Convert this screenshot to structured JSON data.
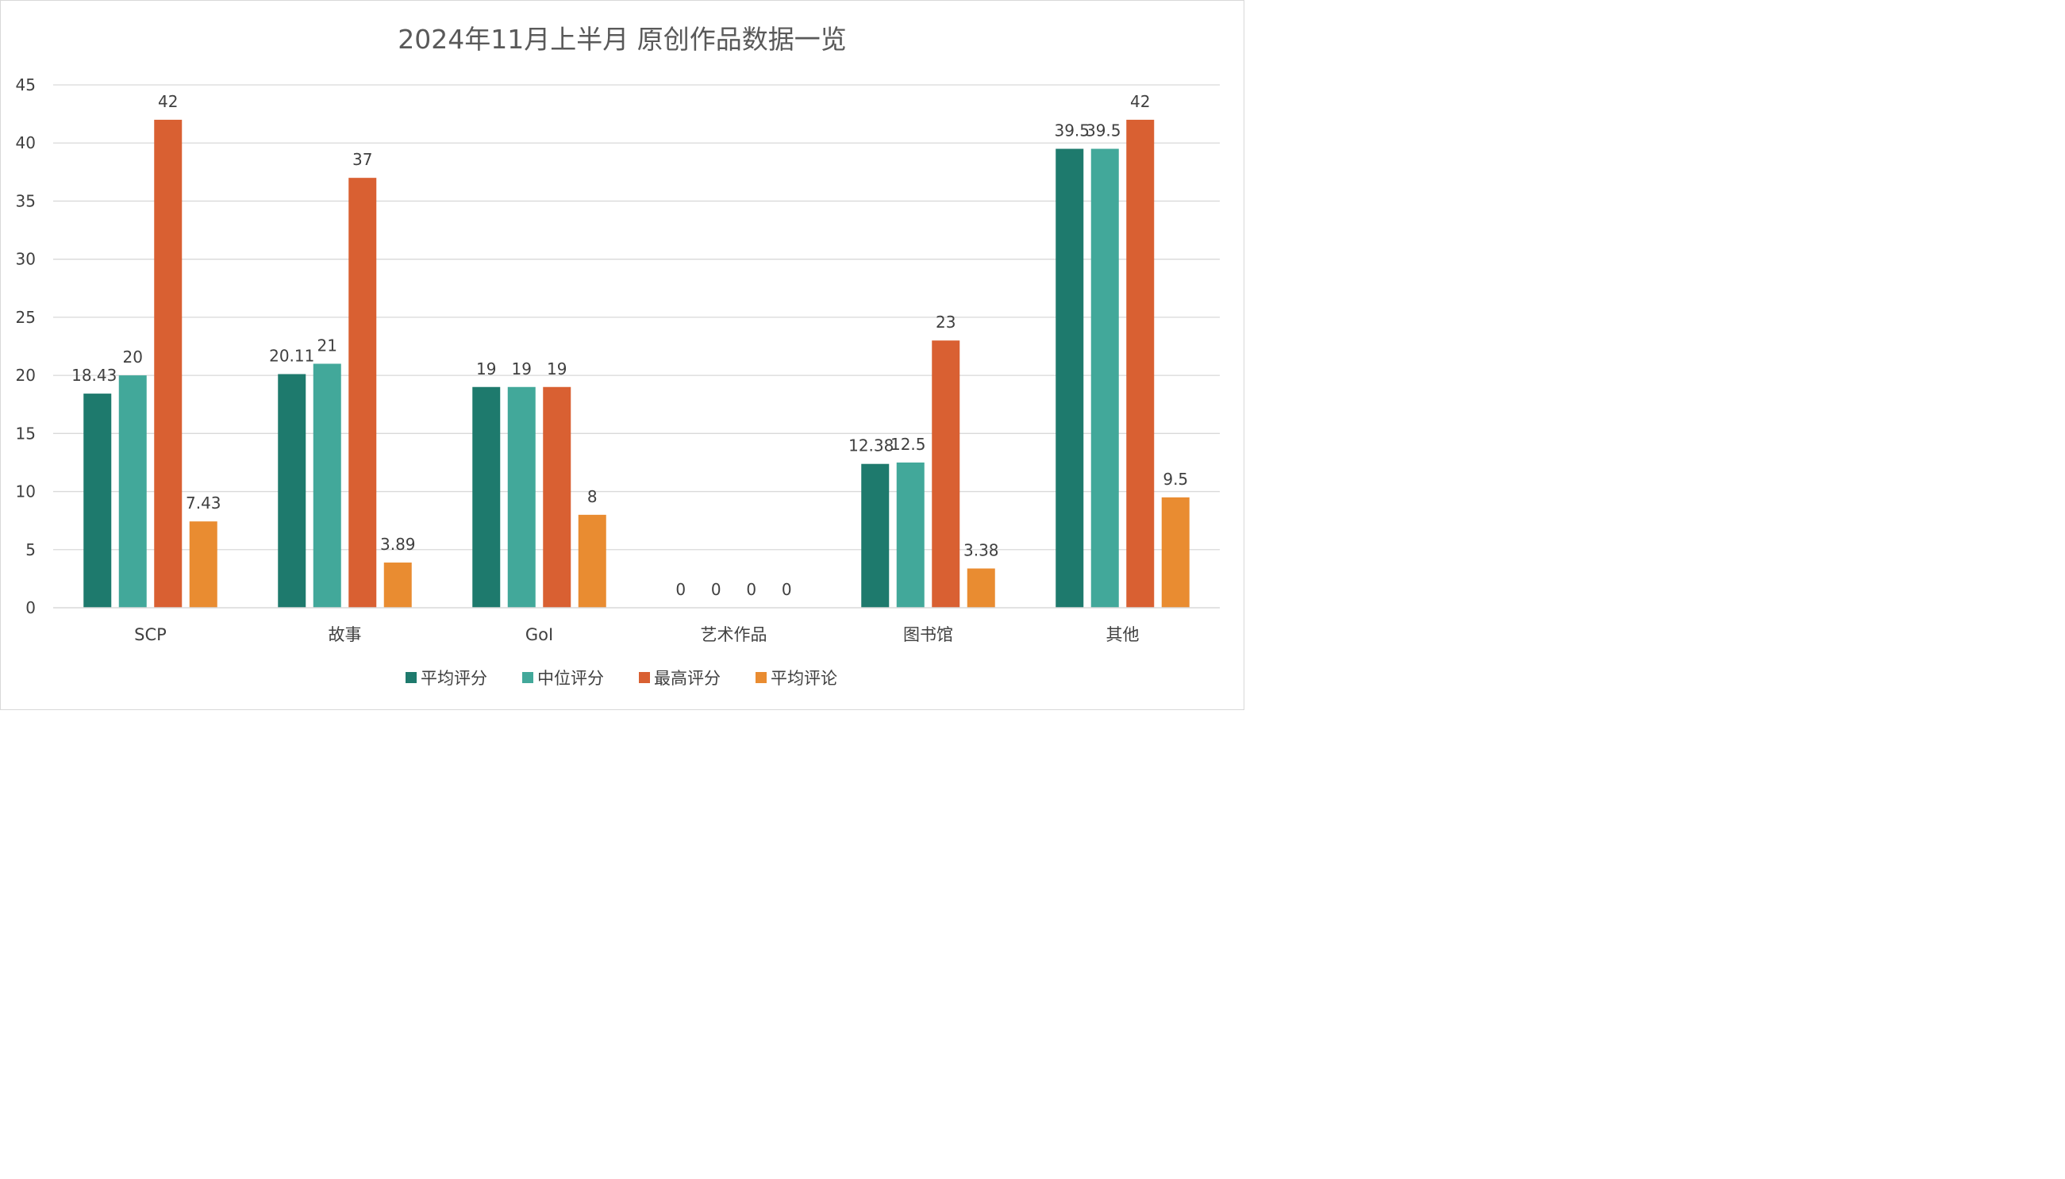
{
  "chart_data": {
    "type": "bar",
    "title": "2024年11月上半月 原创作品数据一览",
    "xlabel": "",
    "ylabel": "",
    "ylim": [
      0,
      45
    ],
    "y_ticks": [
      0,
      5,
      10,
      15,
      20,
      25,
      30,
      35,
      40,
      45
    ],
    "grid": true,
    "legend_position": "bottom",
    "categories": [
      "SCP",
      "故事",
      "GoI",
      "艺术作品",
      "图书馆",
      "其他"
    ],
    "series": [
      {
        "name": "平均评分",
        "color": "#1e7a6d",
        "values": [
          18.43,
          20.11,
          19,
          0,
          12.38,
          39.5
        ],
        "labels": [
          "18.43",
          "20.11",
          "19",
          "0",
          "12.38",
          "39.5"
        ]
      },
      {
        "name": "中位评分",
        "color": "#42a89a",
        "values": [
          20,
          21,
          19,
          0,
          12.5,
          39.5
        ],
        "labels": [
          "20",
          "21",
          "19",
          "0",
          "12.5",
          "39.5"
        ]
      },
      {
        "name": "最高评分",
        "color": "#d96032",
        "values": [
          42,
          37,
          19,
          0,
          23,
          42
        ],
        "labels": [
          "42",
          "37",
          "19",
          "0",
          "23",
          "42"
        ]
      },
      {
        "name": "平均评论",
        "color": "#e98c31",
        "values": [
          7.43,
          3.89,
          8,
          0,
          3.38,
          9.5
        ],
        "labels": [
          "7.43",
          "3.89",
          "8",
          "0",
          "3.38",
          "9.5"
        ]
      }
    ]
  }
}
